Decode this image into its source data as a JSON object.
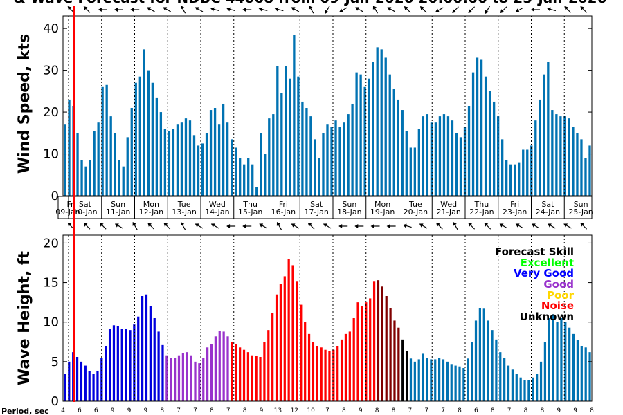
{
  "title": "& Wave Forecast for NDBC 44008 from 09-Jan-2026 20:00:00 to 25-Jan-2026",
  "chart_data": [
    {
      "type": "bar",
      "ylabel": "Wind Speed, kts",
      "ylim": [
        0,
        43
      ],
      "yticks": [
        0,
        10,
        20,
        30,
        40
      ],
      "color": "#0072b2",
      "values": [
        17,
        23,
        21.5,
        15,
        8.5,
        7,
        8.5,
        15.5,
        17.5,
        26,
        26.5,
        19,
        15,
        8.5,
        7,
        14,
        21,
        27,
        28.5,
        35,
        30,
        27,
        23.5,
        20,
        16,
        15.5,
        16,
        17,
        17.5,
        18.5,
        18,
        14.5,
        12,
        12.5,
        15,
        20.5,
        21,
        17,
        22,
        17.5,
        13.5,
        11.5,
        9,
        7.5,
        9,
        7.5,
        2,
        15,
        10,
        18.5,
        19.5,
        31,
        24.5,
        31,
        28,
        38.5,
        28.5,
        22.5,
        21,
        19,
        13.5,
        9,
        15,
        17,
        16.5,
        18,
        16.5,
        17.5,
        19.5,
        22,
        29.5,
        29,
        26,
        28,
        32,
        35.5,
        35,
        33,
        29,
        25.5,
        23,
        20.5,
        15.5,
        11.5,
        11.5,
        16,
        19,
        19.5,
        17.5,
        17.5,
        19,
        19.5,
        19,
        18,
        15,
        14,
        16.5,
        21.5,
        29.5,
        33,
        32.5,
        28.5,
        25,
        22.5,
        19,
        13.5,
        8.5,
        7.5,
        7.5,
        8,
        11,
        11,
        12,
        18,
        23,
        29,
        32,
        20.5,
        19.5,
        19,
        19,
        18.5,
        16.5,
        15,
        13.5,
        9,
        12
      ]
    },
    {
      "type": "bar",
      "ylabel": "Wave Height, ft",
      "ylim": [
        0,
        21
      ],
      "yticks": [
        0,
        5,
        10,
        15,
        20
      ],
      "values": [
        3.5,
        5,
        6.2,
        5.6,
        5,
        4.5,
        3.8,
        3.5,
        3.8,
        5.5,
        7,
        9.1,
        9.6,
        9.5,
        9.1,
        9.1,
        9,
        9.7,
        10.7,
        13.3,
        13.5,
        12,
        10.5,
        8.8,
        7.1,
        5.8,
        5.5,
        5.5,
        5.8,
        6.1,
        6.2,
        5.8,
        5,
        4.8,
        5.5,
        6.8,
        7.2,
        8.2,
        8.9,
        8.8,
        8.2,
        7.5,
        7.2,
        6.8,
        6.5,
        6.2,
        5.8,
        5.7,
        5.6,
        7.5,
        9,
        11.2,
        13.5,
        14.8,
        15.8,
        18,
        17.2,
        15.2,
        12.2,
        10,
        8.5,
        7.5,
        7,
        6.8,
        6.5,
        6.3,
        6.5,
        7,
        7.8,
        8.5,
        8.8,
        10.5,
        12.5,
        12,
        12.5,
        13,
        15.2,
        15.3,
        14.5,
        13.3,
        11.8,
        10.2,
        9.3,
        7.8,
        6.3,
        5.4,
        5,
        5.3,
        6,
        5.5,
        5.3,
        5.3,
        5.5,
        5.3,
        5,
        4.7,
        4.5,
        4.4,
        4.2,
        5.4,
        7.5,
        10.2,
        11.8,
        11.7,
        10.2,
        9,
        7.8,
        6.2,
        5.5,
        4.5,
        4,
        3.5,
        3,
        2.7,
        2.7,
        3,
        3.5,
        5,
        7.5,
        10.5,
        11,
        10,
        10.5,
        10,
        9.3,
        8.5,
        7.7,
        7,
        6.8,
        6.2
      ],
      "skill": [
        "vg",
        "vg",
        "vg",
        "vg",
        "vg",
        "vg",
        "vg",
        "vg",
        "vg",
        "vg",
        "vg",
        "vg",
        "vg",
        "vg",
        "vg",
        "vg",
        "vg",
        "vg",
        "vg",
        "vg",
        "vg",
        "vg",
        "vg",
        "vg",
        "vg",
        "g",
        "g",
        "g",
        "g",
        "g",
        "g",
        "g",
        "g",
        "g",
        "g",
        "g",
        "g",
        "g",
        "g",
        "g",
        "g",
        "r",
        "r",
        "r",
        "r",
        "r",
        "r",
        "r",
        "r",
        "r",
        "r",
        "r",
        "r",
        "r",
        "r",
        "r",
        "r",
        "r",
        "r",
        "r",
        "r",
        "r",
        "r",
        "r",
        "r",
        "r",
        "r",
        "r",
        "r",
        "r",
        "r",
        "r",
        "r",
        "r",
        "r",
        "r",
        "r",
        "dr",
        "dr",
        "dr",
        "dr",
        "dr",
        "dr",
        "k",
        "k",
        "u",
        "u",
        "u",
        "u",
        "u",
        "u",
        "u",
        "u",
        "u",
        "u",
        "u",
        "u",
        "u",
        "u",
        "u",
        "u",
        "u",
        "u",
        "u",
        "u",
        "u",
        "u",
        "u",
        "u",
        "u",
        "u",
        "u",
        "u",
        "u",
        "u",
        "u",
        "u",
        "u",
        "u",
        "u",
        "u",
        "u",
        "u",
        "u",
        "u",
        "u",
        "u",
        "u",
        "u",
        "u"
      ],
      "skill_colors": {
        "vg": "#0000dd",
        "g": "#9933cc",
        "r": "#ff0000",
        "dr": "#800000",
        "k": "#000000",
        "u": "#0072b2"
      }
    }
  ],
  "day_labels": [
    {
      "day": "Fri",
      "date": "09-Jan"
    },
    {
      "day": "Sat",
      "date": "10-Jan"
    },
    {
      "day": "Sun",
      "date": "11-Jan"
    },
    {
      "day": "Mon",
      "date": "12-Jan"
    },
    {
      "day": "Tue",
      "date": "13-Jan"
    },
    {
      "day": "Wed",
      "date": "14-Jan"
    },
    {
      "day": "Thu",
      "date": "15-Jan"
    },
    {
      "day": "Fri",
      "date": "16-Jan"
    },
    {
      "day": "Sat",
      "date": "17-Jan"
    },
    {
      "day": "Sun",
      "date": "18-Jan"
    },
    {
      "day": "Mon",
      "date": "19-Jan"
    },
    {
      "day": "Tue",
      "date": "20-Jan"
    },
    {
      "day": "Wed",
      "date": "21-Jan"
    },
    {
      "day": "Thu",
      "date": "22-Jan"
    },
    {
      "day": "Fri",
      "date": "23-Jan"
    },
    {
      "day": "Sat",
      "date": "24-Jan"
    },
    {
      "day": "Sun",
      "date": "25-Jan"
    }
  ],
  "period_label": "Period, sec",
  "periods": [
    "4",
    "6",
    "6",
    "9",
    "9",
    "9",
    "8",
    "7",
    "7",
    "8",
    "7",
    "8",
    "9",
    "13",
    "12",
    "10",
    "7",
    "8",
    "9",
    "8",
    "8",
    "7",
    "7",
    "7",
    "8",
    "6",
    "8",
    "7",
    "8",
    "8",
    "9",
    "9",
    "8"
  ],
  "legend": {
    "title": "Forecast Skill",
    "items": [
      {
        "label": "Excellent",
        "color": "#00ff00"
      },
      {
        "label": "Very Good",
        "color": "#0000ff"
      },
      {
        "label": "Good",
        "color": "#9933cc"
      },
      {
        "label": "Poor",
        "color": "#ffd700"
      },
      {
        "label": "Noise",
        "color": "#ff0000"
      },
      {
        "label": "Unknown",
        "color": "#000000"
      }
    ]
  },
  "wind_dir_deg": [
    315,
    315,
    270,
    270,
    270,
    300,
    300,
    330,
    300,
    285,
    285,
    270,
    285,
    285,
    300,
    330,
    210,
    240,
    300,
    330,
    300,
    315,
    315,
    240,
    225,
    225,
    210,
    225,
    240,
    270,
    285,
    315,
    315
  ],
  "wave_dir_deg": [
    315,
    315,
    315,
    300,
    330,
    315,
    315,
    330,
    300,
    300,
    270,
    270,
    300,
    330,
    300,
    315,
    300,
    270,
    270,
    270,
    270,
    285,
    300,
    315,
    330,
    315,
    315,
    300,
    300,
    300,
    300,
    300,
    315
  ]
}
